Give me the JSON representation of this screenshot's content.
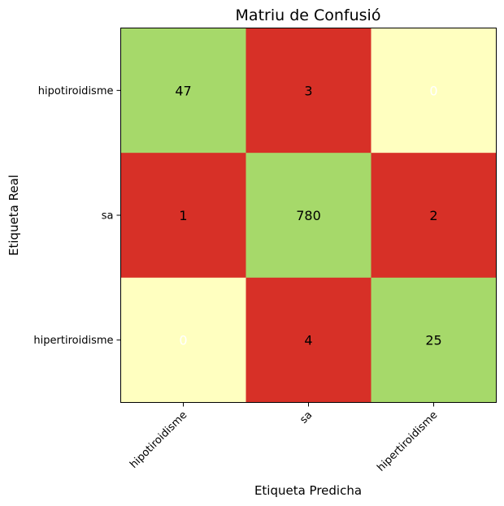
{
  "chart_data": {
    "type": "heatmap",
    "title": "Matriu de Confusió",
    "xlabel": "Etiqueta Predicha",
    "ylabel": "Etiqueta Real",
    "x_categories": [
      "hipotiroidisme",
      "sa",
      "hipertiroidisme"
    ],
    "y_categories": [
      "hipotiroidisme",
      "sa",
      "hipertiroidisme"
    ],
    "values": [
      [
        47,
        3,
        0
      ],
      [
        1,
        780,
        2
      ],
      [
        0,
        4,
        25
      ]
    ],
    "colors": {
      "diagonal": "#a6d96a",
      "off_diagonal_nonzero": "#d73027",
      "zero": "#ffffc0",
      "text_dark": "#000000",
      "text_light": "#ffffff"
    },
    "grid": false
  }
}
